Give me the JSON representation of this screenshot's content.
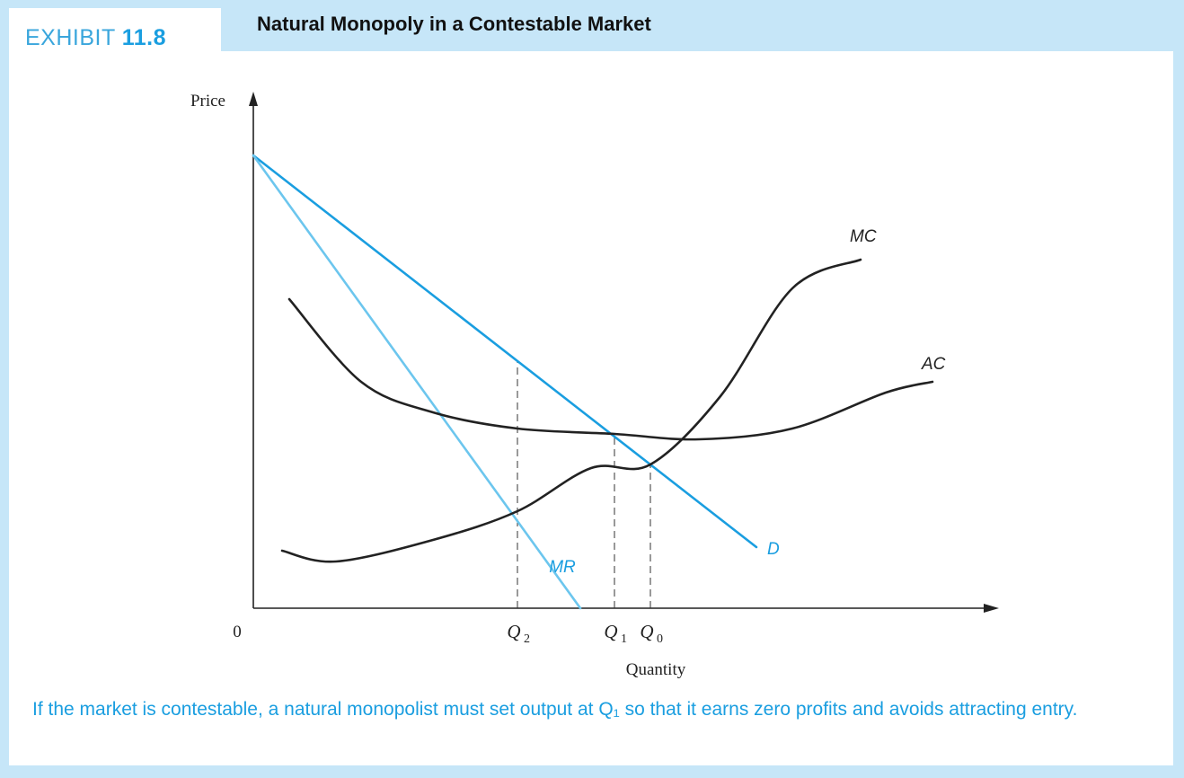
{
  "exhibit": {
    "prefix": "EXHIBIT ",
    "number": "11.8"
  },
  "title": "Natural Monopoly in a Contestable Market",
  "caption": "If the market is contestable, a natural monopolist must set output at Q₁ so that it earns zero profits and avoids attracting entry.",
  "colors": {
    "background": "#c6e6f8",
    "demand": "#1a9ee0",
    "mr": "#6cc6ee",
    "cost_curves": "#222222",
    "accent_text": "#1a9ee0"
  },
  "chart_data": {
    "type": "line",
    "xlabel": "Quantity",
    "ylabel": "Price",
    "origin_label": "0",
    "x_ticks": [
      {
        "name": "Q2",
        "sub": "2",
        "x": 73.5
      },
      {
        "name": "Q1",
        "sub": "1",
        "x": 100.5
      },
      {
        "name": "Q0",
        "sub": "0",
        "x": 110.5
      }
    ],
    "xlim": [
      0,
      208
    ],
    "ylim": [
      0,
      160
    ],
    "series": [
      {
        "name": "D",
        "points": [
          [
            0,
            126
          ],
          [
            140,
            17
          ]
        ]
      },
      {
        "name": "MR",
        "points": [
          [
            0,
            126
          ],
          [
            91,
            0
          ]
        ]
      },
      {
        "name": "MC",
        "points": [
          [
            8,
            16
          ],
          [
            23,
            13
          ],
          [
            50,
            19
          ],
          [
            73.5,
            27
          ],
          [
            94,
            39
          ],
          [
            110.5,
            40
          ],
          [
            130,
            59
          ],
          [
            150,
            89
          ],
          [
            169,
            97
          ]
        ]
      },
      {
        "name": "AC",
        "points": [
          [
            10,
            86
          ],
          [
            30,
            63
          ],
          [
            50,
            54.5
          ],
          [
            73.5,
            50
          ],
          [
            100.5,
            48.5
          ],
          [
            124,
            47
          ],
          [
            150,
            50
          ],
          [
            176,
            60
          ],
          [
            189,
            63
          ]
        ]
      }
    ],
    "vertical_guides": [
      {
        "at": "Q2",
        "to_curve": "D"
      },
      {
        "at": "Q1",
        "to_curve": "AC"
      },
      {
        "at": "Q0",
        "to_curve": "MC"
      }
    ]
  }
}
